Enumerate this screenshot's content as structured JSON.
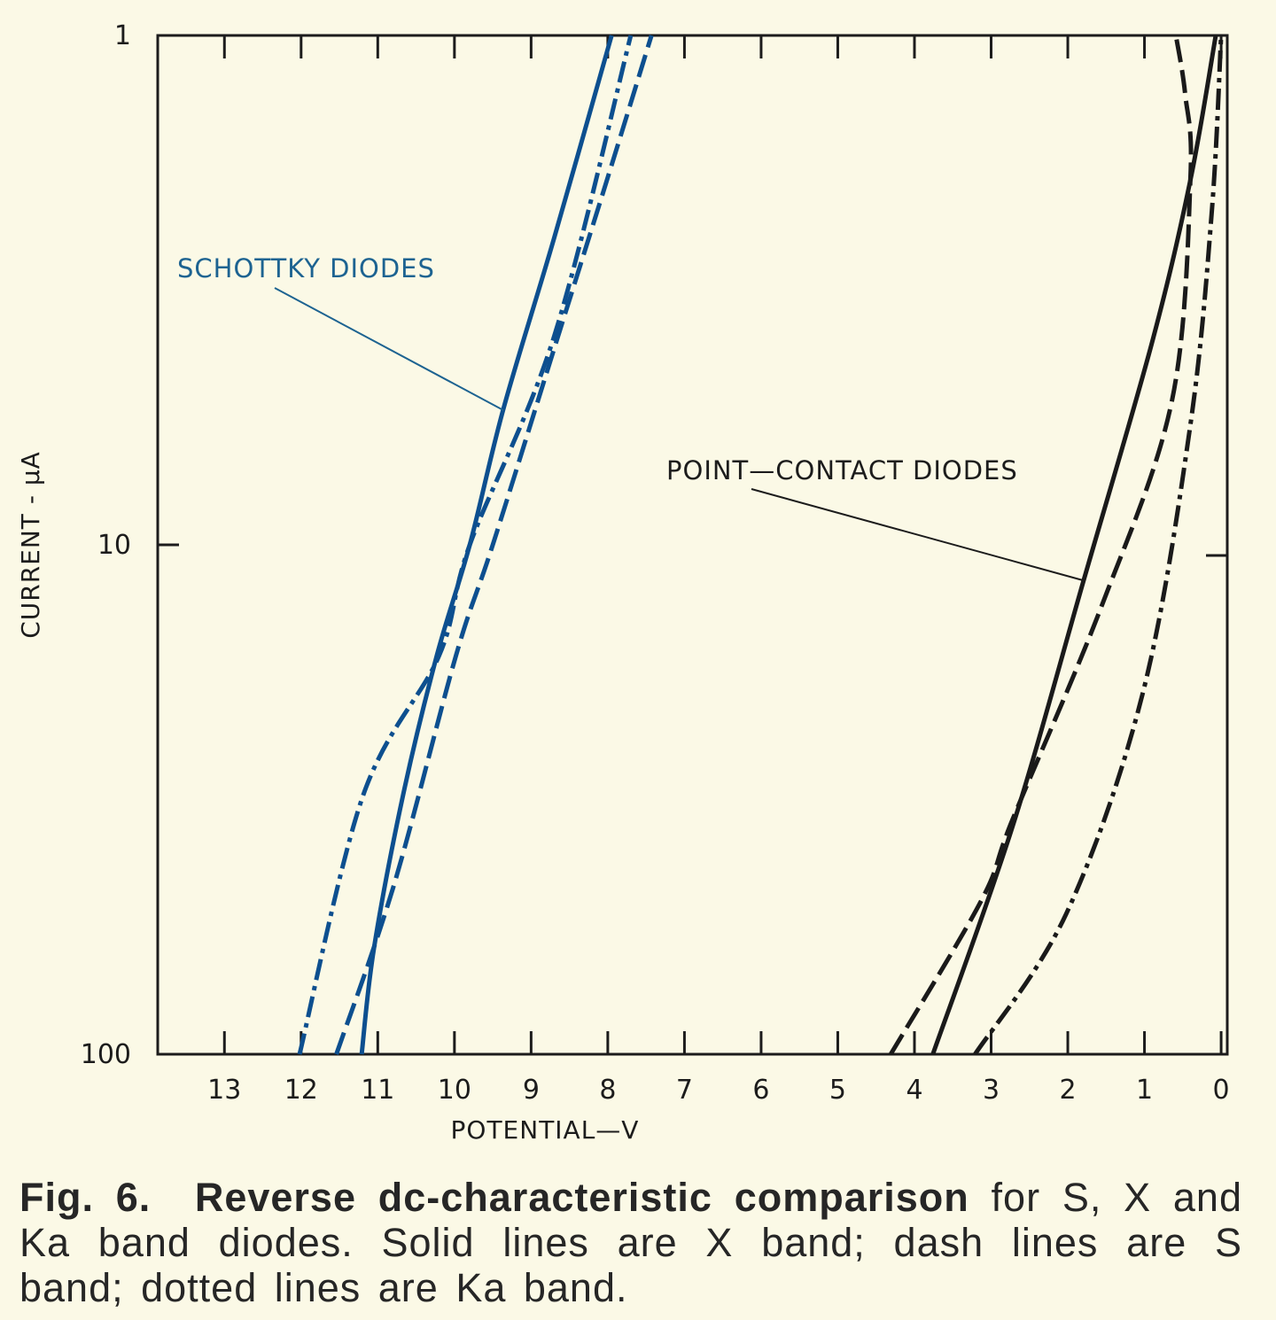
{
  "colors": {
    "background": "#fbf9e6",
    "schottky": "#0d4f8f",
    "schottky_label": "#1d6391",
    "point_contact": "#1a1a1a"
  },
  "chart_data": {
    "type": "line",
    "title": "",
    "xlabel": "POTENTIAL—V",
    "ylabel": "CURRENT - μA",
    "xlim": [
      13.87,
      -0.08
    ],
    "ylim": [
      1,
      100
    ],
    "x_reversed": true,
    "y_scale": "log",
    "y_increases": "downward",
    "grid": false,
    "x_ticks": [
      13,
      12,
      11,
      10,
      9,
      8,
      7,
      6,
      5,
      4,
      3,
      2,
      1,
      0
    ],
    "x_tick_labels": [
      "13",
      "12",
      "11",
      "10",
      "9",
      "8",
      "7",
      "6",
      "5",
      "4",
      "3",
      "2",
      "1",
      "0"
    ],
    "y_ticks": [
      1,
      10,
      100
    ],
    "y_tick_labels": [
      "1",
      "10",
      "100"
    ],
    "annotations": [
      {
        "text": "SCHOTTKY DIODES",
        "group": "schottky"
      },
      {
        "text": "POINT—CONTACT DIODES",
        "group": "point_contact"
      }
    ],
    "series": [
      {
        "group": "schottky",
        "style": "solid",
        "points": [
          [
            11.21,
            100
          ],
          [
            11.05,
            62
          ],
          [
            10.67,
            31
          ],
          [
            10.23,
            16.5
          ],
          [
            9.8,
            10
          ],
          [
            9.36,
            5.4
          ],
          [
            8.7,
            2.5
          ],
          [
            7.95,
            1
          ]
        ]
      },
      {
        "group": "schottky",
        "style": "dash",
        "points": [
          [
            11.54,
            100
          ],
          [
            10.79,
            46.6
          ],
          [
            9.98,
            16.5
          ],
          [
            9.5,
            10
          ],
          [
            8.65,
            3.9
          ],
          [
            8.0,
            1.9
          ],
          [
            7.43,
            1
          ]
        ]
      },
      {
        "group": "schottky",
        "style": "dashdot",
        "points": [
          [
            12.02,
            100
          ],
          [
            11.19,
            31
          ],
          [
            10.2,
            16.5
          ],
          [
            9.8,
            10
          ],
          [
            8.7,
            3.9
          ],
          [
            7.7,
            1
          ]
        ]
      },
      {
        "group": "point_contact",
        "style": "solid",
        "points": [
          [
            3.76,
            100
          ],
          [
            2.72,
            35.7
          ],
          [
            1.79,
            11.7
          ],
          [
            0.9,
            4.0
          ],
          [
            0.4,
            1.92
          ],
          [
            0.07,
            1
          ]
        ]
      },
      {
        "group": "point_contact",
        "style": "dash",
        "points": [
          [
            4.31,
            100
          ],
          [
            3.13,
            50
          ],
          [
            2.72,
            34.6
          ],
          [
            1.56,
            13.2
          ],
          [
            0.64,
            5.2
          ],
          [
            0.4,
            1.9
          ],
          [
            0.47,
            1.3
          ],
          [
            0.59,
            1
          ]
        ]
      },
      {
        "group": "point_contact",
        "style": "dashdot",
        "points": [
          [
            3.21,
            100
          ],
          [
            2.02,
            53
          ],
          [
            1.02,
            19.5
          ],
          [
            0.4,
            5.8
          ],
          [
            0.12,
            2.2
          ],
          [
            0.0,
            1
          ]
        ]
      }
    ]
  },
  "caption": {
    "fig_label": "Fig. 6.",
    "bold_title": "Reverse dc-characteristic comparison",
    "text": "for S, X and Ka band diodes. Solid lines are X band; dash lines are S band; dotted lines are Ka band."
  }
}
